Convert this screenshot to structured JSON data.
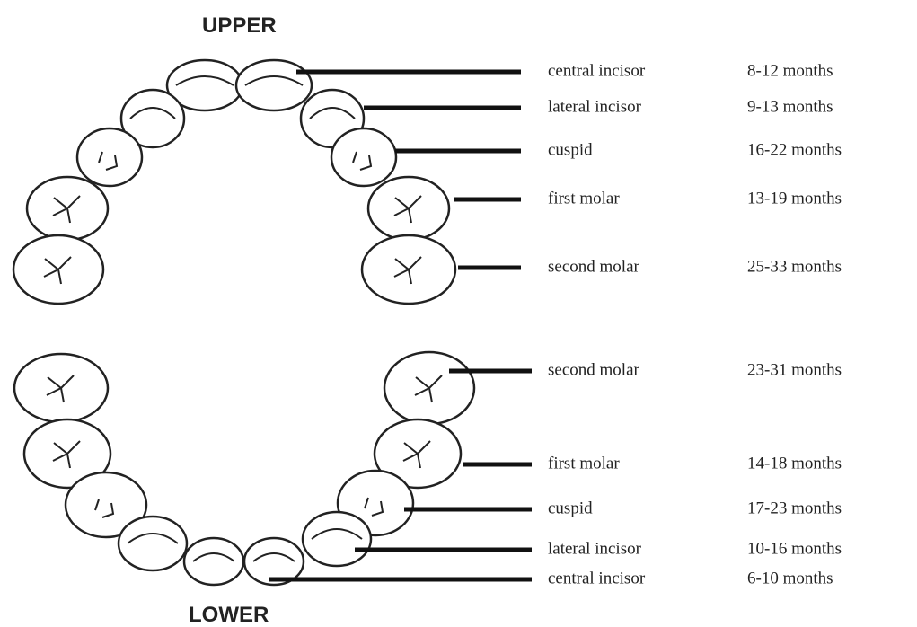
{
  "upper": {
    "title": "UPPER",
    "rows": [
      {
        "tooth": "central incisor",
        "age": "8-12 months"
      },
      {
        "tooth": "lateral incisor",
        "age": "9-13 months"
      },
      {
        "tooth": "cuspid",
        "age": "16-22 months"
      },
      {
        "tooth": "first molar",
        "age": "13-19 months"
      },
      {
        "tooth": "second molar",
        "age": "25-33 months"
      }
    ]
  },
  "lower": {
    "title": "LOWER",
    "rows": [
      {
        "tooth": "second molar",
        "age": "23-31 months"
      },
      {
        "tooth": "first molar",
        "age": "14-18 months"
      },
      {
        "tooth": "cuspid",
        "age": "17-23 months"
      },
      {
        "tooth": "lateral incisor",
        "age": "10-16 months"
      },
      {
        "tooth": "central incisor",
        "age": "6-10 months"
      }
    ]
  }
}
